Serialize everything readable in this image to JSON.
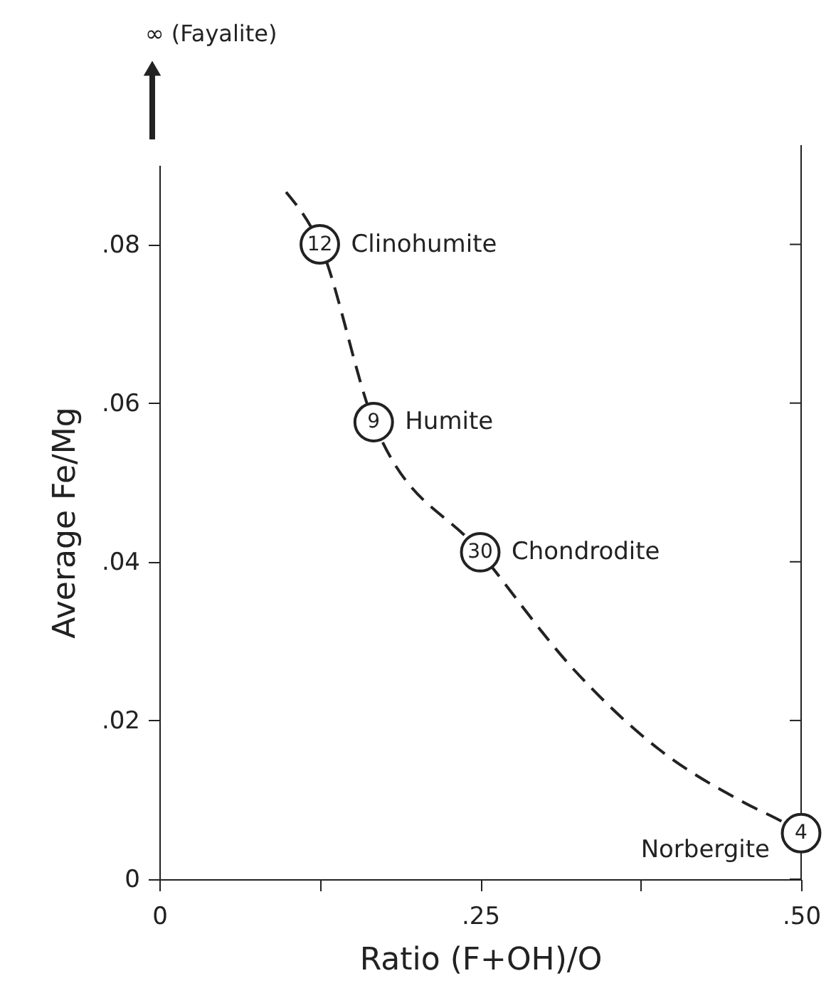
{
  "chart_data": {
    "type": "scatter",
    "xlabel": "Ratio (F+OH)/O",
    "ylabel": "Average Fe/Mg",
    "series": [
      {
        "type": "line",
        "color": "#222222",
        "line_style": "dashed",
        "marker": "none",
        "x": [
          0.0987,
          0.125,
          0.167,
          0.25,
          0.323,
          0.389,
          0.455,
          0.488,
          0.5
        ],
        "values": [
          0.0866,
          0.08,
          0.0576,
          0.0412,
          0.0264,
          0.0164,
          0.0097,
          0.007,
          0.0058
        ]
      },
      {
        "type": "scatter",
        "color": "#222222",
        "marker": "circle",
        "x": [
          0.125,
          0.167,
          0.25,
          0.5
        ],
        "values": [
          0.08,
          0.0576,
          0.0412,
          0.0058
        ]
      }
    ],
    "annotations": [
      "∞ (Fayalite)",
      {
        "text": "12",
        "x": 0.125,
        "y": 0.08
      },
      {
        "text": "Clinohumite",
        "x": 0.125,
        "y": 0.08
      },
      {
        "text": "9",
        "x": 0.167,
        "y": 0.0576
      },
      {
        "text": "Humite",
        "x": 0.167,
        "y": 0.0576
      },
      {
        "text": "30",
        "x": 0.25,
        "y": 0.0412
      },
      {
        "text": "Chondrodite",
        "x": 0.25,
        "y": 0.0412
      },
      {
        "text": "4",
        "x": 0.5,
        "y": 0.0058
      },
      {
        "text": "Norbergite",
        "x": 0.5,
        "y": 0.0058
      }
    ],
    "xlim": [
      0,
      0.5
    ],
    "ylim": [
      0,
      0.09
    ],
    "xticks": [
      {
        "value": 0,
        "label": "0"
      },
      {
        "value": 0.125,
        "label": null
      },
      {
        "value": 0.25,
        "label": ".25"
      },
      {
        "value": 0.375,
        "label": null
      },
      {
        "value": 0.5,
        "label": ".50"
      }
    ],
    "yticks": [
      {
        "value": 0,
        "label": "0"
      },
      {
        "value": 0.02,
        "label": ".02"
      },
      {
        "value": 0.04,
        "label": ".04"
      },
      {
        "value": 0.06,
        "label": ".06"
      },
      {
        "value": 0.08,
        "label": ".08"
      }
    ],
    "grid": false
  }
}
